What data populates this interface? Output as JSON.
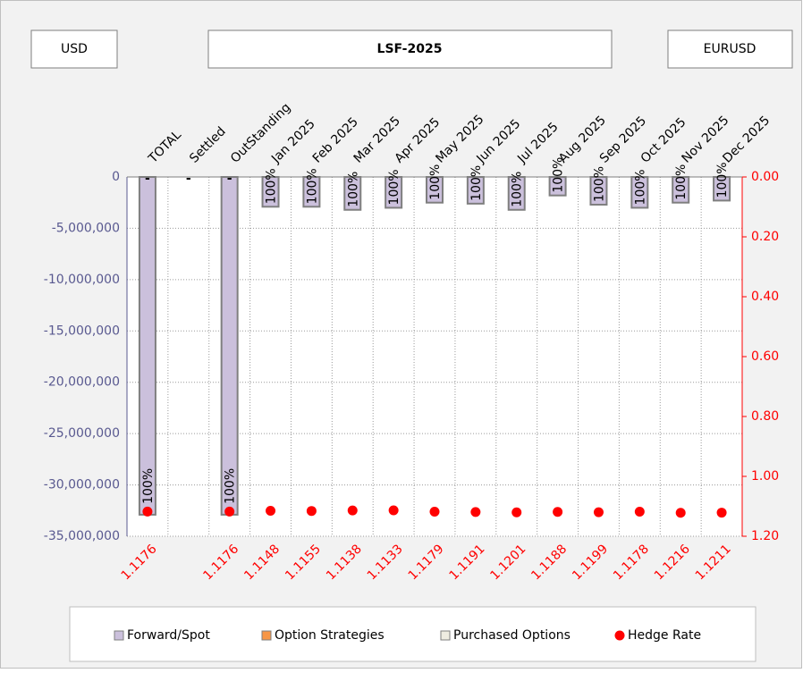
{
  "header": {
    "currency": "USD",
    "title": "LSF-2025",
    "pair": "EURUSD"
  },
  "chart_data": {
    "type": "bar",
    "categories": [
      "TOTAL",
      "Settled",
      "OutStanding",
      "Jan 2025",
      "Feb 2025",
      "Mar 2025",
      "Apr 2025",
      "May 2025",
      "Jun 2025",
      "Jul 2025",
      "Aug 2025",
      "Sep 2025",
      "Oct 2025",
      "Nov 2025",
      "Dec 2025"
    ],
    "series": [
      {
        "name": "Forward/Spot",
        "color": "#cbc0dc",
        "values": [
          -32900000,
          0,
          -32900000,
          -2900000,
          -2900000,
          -3200000,
          -3000000,
          -2500000,
          -2600000,
          -3200000,
          -1800000,
          -2700000,
          -3000000,
          -2500000,
          -2300000
        ]
      },
      {
        "name": "Option Strategies",
        "color": "#f79646"
      },
      {
        "name": "Purchased Options",
        "color": "#eeece1"
      },
      {
        "name": "Hedge Rate",
        "color": "#ff0000",
        "axis": "y2",
        "marker": "dot",
        "values": [
          1.1176,
          null,
          1.1176,
          1.1148,
          1.1155,
          1.1138,
          1.1133,
          1.1179,
          1.1191,
          1.1201,
          1.1188,
          1.1199,
          1.1178,
          1.1216,
          1.1211
        ]
      }
    ],
    "bar_labels": [
      "100%",
      null,
      "100%",
      "100%",
      "100%",
      "100%",
      "100%",
      "100%",
      "100%",
      "100%",
      "100%",
      "100%",
      "100%",
      "100%",
      "100%"
    ],
    "top_labels": [
      "-",
      "-",
      "-",
      null,
      null,
      null,
      null,
      null,
      null,
      null,
      null,
      null,
      null,
      null,
      null
    ],
    "ylim": [
      -35000000,
      0
    ],
    "yticks": [
      0,
      {
        "value": -5000000,
        "label": "-5,000,000"
      },
      {
        "value": -10000000,
        "label": "-10,000,000"
      },
      {
        "value": -15000000,
        "label": "-15,000,000"
      },
      {
        "value": -20000000,
        "label": "-20,000,000"
      },
      {
        "value": -25000000,
        "label": "-25,000,000"
      },
      {
        "value": -30000000,
        "label": "-30,000,000"
      },
      {
        "value": -35000000,
        "label": "-35,000,000"
      }
    ],
    "y2lim": [
      0,
      1.2
    ],
    "y2_reversed": true,
    "y2ticks": [
      {
        "value": 0,
        "label": "0.00"
      },
      {
        "value": 0.2,
        "label": "0.20"
      },
      {
        "value": 0.4,
        "label": "0.40"
      },
      {
        "value": 0.6,
        "label": "0.60"
      },
      {
        "value": 0.8,
        "label": "0.80"
      },
      {
        "value": 1.0,
        "label": "1.00"
      },
      {
        "value": 1.2,
        "label": "1.20"
      }
    ],
    "grid": true,
    "legend": "bottom"
  }
}
